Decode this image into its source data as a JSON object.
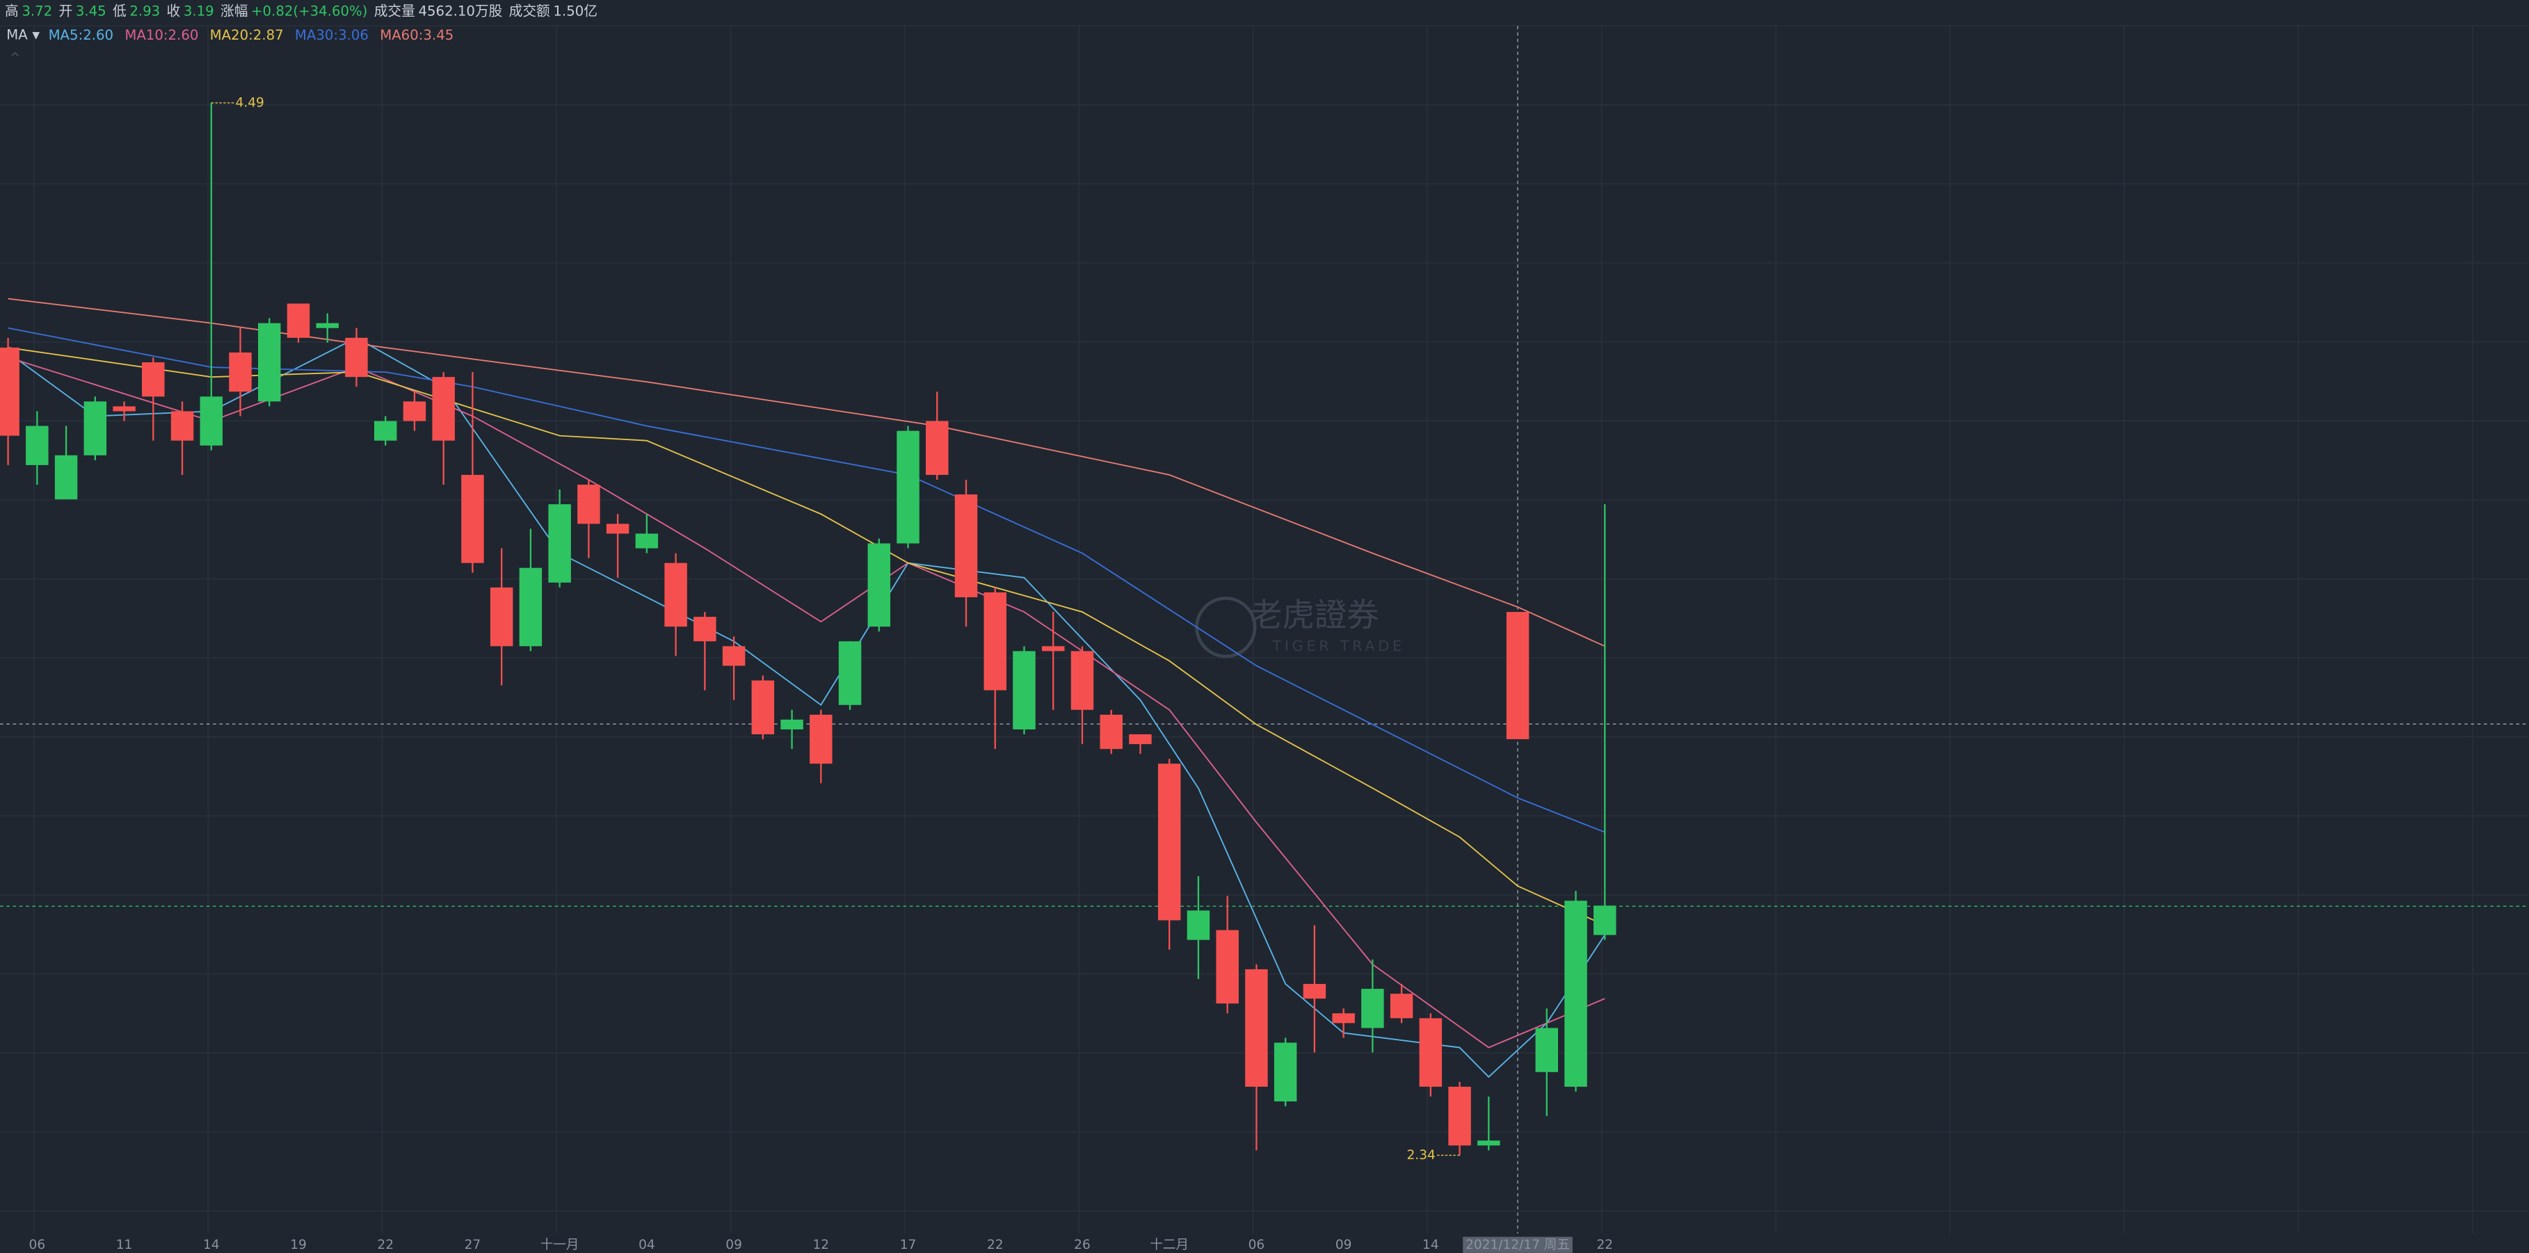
{
  "chart_data": {
    "type": "candlestick",
    "header": [
      {
        "label": "高",
        "value": "3.72"
      },
      {
        "label": "开",
        "value": "3.45"
      },
      {
        "label": "低",
        "value": "2.93"
      },
      {
        "label": "收",
        "value": "3.19"
      },
      {
        "label": "涨幅",
        "value": "+0.82(+34.60%)"
      },
      {
        "label": "成交量",
        "value": "4562.10万股"
      },
      {
        "label": "成交额",
        "value": "1.50亿"
      }
    ],
    "indicator": "MA",
    "watermark": [
      "老虎證券",
      "TIGER TRADE"
    ],
    "up_color": "#f5504f",
    "down_color": "#2fc462",
    "ylim": [
      2.18,
      4.7
    ],
    "categories": [
      null,
      "06",
      null,
      null,
      "11",
      null,
      null,
      "14",
      null,
      null,
      "19",
      null,
      null,
      "22",
      null,
      null,
      "27",
      null,
      null,
      "十一月",
      null,
      null,
      "04",
      null,
      null,
      "09",
      null,
      null,
      "12",
      null,
      null,
      "17",
      null,
      null,
      "22",
      null,
      null,
      "26",
      null,
      null,
      "十二月",
      null,
      null,
      "06",
      null,
      null,
      "09",
      null,
      null,
      "14",
      null,
      null,
      "2021/12/17 周五",
      null,
      null,
      "22"
    ],
    "open": [
      3.81,
      3.83,
      3.77,
      3.88,
      3.86,
      3.89,
      3.8,
      3.89,
      3.9,
      4.04,
      4.01,
      4.04,
      3.93,
      3.84,
      3.84,
      3.8,
      3.55,
      3.38,
      3.54,
      3.67,
      3.63,
      3.61,
      3.61,
      3.42,
      3.39,
      3.34,
      3.2,
      3.23,
      3.14,
      3.39,
      3.59,
      3.82,
      3.73,
      3.48,
      3.29,
      3.37,
      3.37,
      3.25,
      3.17,
      3.18,
      2.82,
      2.84,
      2.65,
      2.48,
      2.57,
      2.66,
      2.61,
      2.68,
      2.62,
      2.48,
      2.36,
      2.37,
      3.19,
      2.6,
      2.86,
      2.85
    ],
    "high": [
      4.01,
      3.86,
      3.83,
      3.89,
      3.88,
      3.97,
      3.88,
      4.49,
      4.03,
      4.05,
      4.08,
      4.06,
      4.03,
      3.85,
      3.9,
      3.94,
      3.94,
      3.58,
      3.62,
      3.7,
      3.72,
      3.65,
      3.65,
      3.57,
      3.45,
      3.4,
      3.32,
      3.25,
      3.25,
      3.39,
      3.6,
      3.83,
      3.9,
      3.72,
      3.5,
      3.38,
      3.45,
      3.38,
      3.25,
      3.2,
      3.15,
      2.91,
      2.87,
      2.73,
      2.58,
      2.81,
      2.64,
      2.74,
      2.69,
      2.63,
      2.49,
      2.46,
      3.45,
      2.64,
      2.88,
      3.67
    ],
    "low": [
      3.75,
      3.71,
      3.68,
      3.76,
      3.84,
      3.8,
      3.73,
      3.78,
      3.85,
      3.87,
      4.0,
      4.0,
      3.91,
      3.79,
      3.82,
      3.71,
      3.53,
      3.3,
      3.37,
      3.5,
      3.56,
      3.52,
      3.57,
      3.36,
      3.29,
      3.27,
      3.19,
      3.17,
      3.1,
      3.25,
      3.41,
      3.58,
      3.72,
      3.42,
      3.17,
      3.2,
      3.25,
      3.18,
      3.16,
      3.16,
      2.76,
      2.7,
      2.63,
      2.35,
      2.44,
      2.55,
      2.58,
      2.55,
      2.61,
      2.46,
      2.34,
      2.35,
      3.19,
      2.42,
      2.47,
      2.78
    ],
    "close": [
      3.99,
      3.75,
      3.68,
      3.77,
      3.87,
      3.96,
      3.86,
      3.79,
      3.98,
      3.88,
      4.08,
      4.03,
      4.01,
      3.8,
      3.88,
      3.93,
      3.73,
      3.5,
      3.38,
      3.51,
      3.71,
      3.63,
      3.58,
      3.55,
      3.44,
      3.38,
      3.31,
      3.21,
      3.24,
      3.26,
      3.42,
      3.59,
      3.84,
      3.69,
      3.49,
      3.21,
      3.38,
      3.37,
      3.24,
      3.2,
      3.14,
      2.78,
      2.8,
      2.72,
      2.45,
      2.69,
      2.63,
      2.6,
      2.67,
      2.62,
      2.48,
      2.36,
      3.45,
      2.51,
      2.48,
      2.79
    ],
    "annotations": [
      {
        "index": 7,
        "value": 4.49
      },
      {
        "index": 50,
        "value": 2.34
      }
    ],
    "series": [
      {
        "name": "MA5:2.60",
        "color": "#5ab4e8",
        "x": [
          0,
          3,
          7,
          12,
          15,
          19,
          25,
          28,
          31,
          35,
          39,
          41,
          44,
          46,
          50,
          51,
          53,
          55
        ],
        "values": [
          3.98,
          3.85,
          3.86,
          4.01,
          3.91,
          3.57,
          3.39,
          3.26,
          3.55,
          3.52,
          3.27,
          3.09,
          2.69,
          2.59,
          2.56,
          2.5,
          2.61,
          2.79
        ]
      },
      {
        "name": "MA10:2.60",
        "color": "#e0608c",
        "x": [
          0,
          7,
          12,
          16,
          20,
          24,
          28,
          31,
          35,
          40,
          43,
          47,
          51,
          55
        ],
        "values": [
          3.97,
          3.84,
          3.95,
          3.85,
          3.72,
          3.58,
          3.43,
          3.55,
          3.45,
          3.25,
          3.02,
          2.73,
          2.56,
          2.66
        ]
      },
      {
        "name": "MA20:2.87",
        "color": "#e6c34a",
        "x": [
          0,
          7,
          12,
          19,
          22,
          28,
          31,
          37,
          40,
          43,
          47,
          50,
          52,
          55
        ],
        "values": [
          3.99,
          3.93,
          3.94,
          3.81,
          3.8,
          3.65,
          3.55,
          3.45,
          3.35,
          3.22,
          3.09,
          2.99,
          2.89,
          2.81
        ]
      },
      {
        "name": "MA30:3.06",
        "color": "#3a6fd8",
        "x": [
          0,
          7,
          13,
          16,
          22,
          31,
          37,
          43,
          48,
          52,
          55
        ],
        "values": [
          4.03,
          3.95,
          3.94,
          3.91,
          3.83,
          3.73,
          3.57,
          3.34,
          3.19,
          3.07,
          3.0
        ]
      },
      {
        "name": "MA60:3.45",
        "color": "#e87a72",
        "x": [
          0,
          7,
          13,
          22,
          32,
          40,
          47,
          52,
          55
        ],
        "values": [
          4.09,
          4.04,
          3.99,
          3.92,
          3.83,
          3.73,
          3.57,
          3.46,
          3.38
        ]
      }
    ]
  }
}
